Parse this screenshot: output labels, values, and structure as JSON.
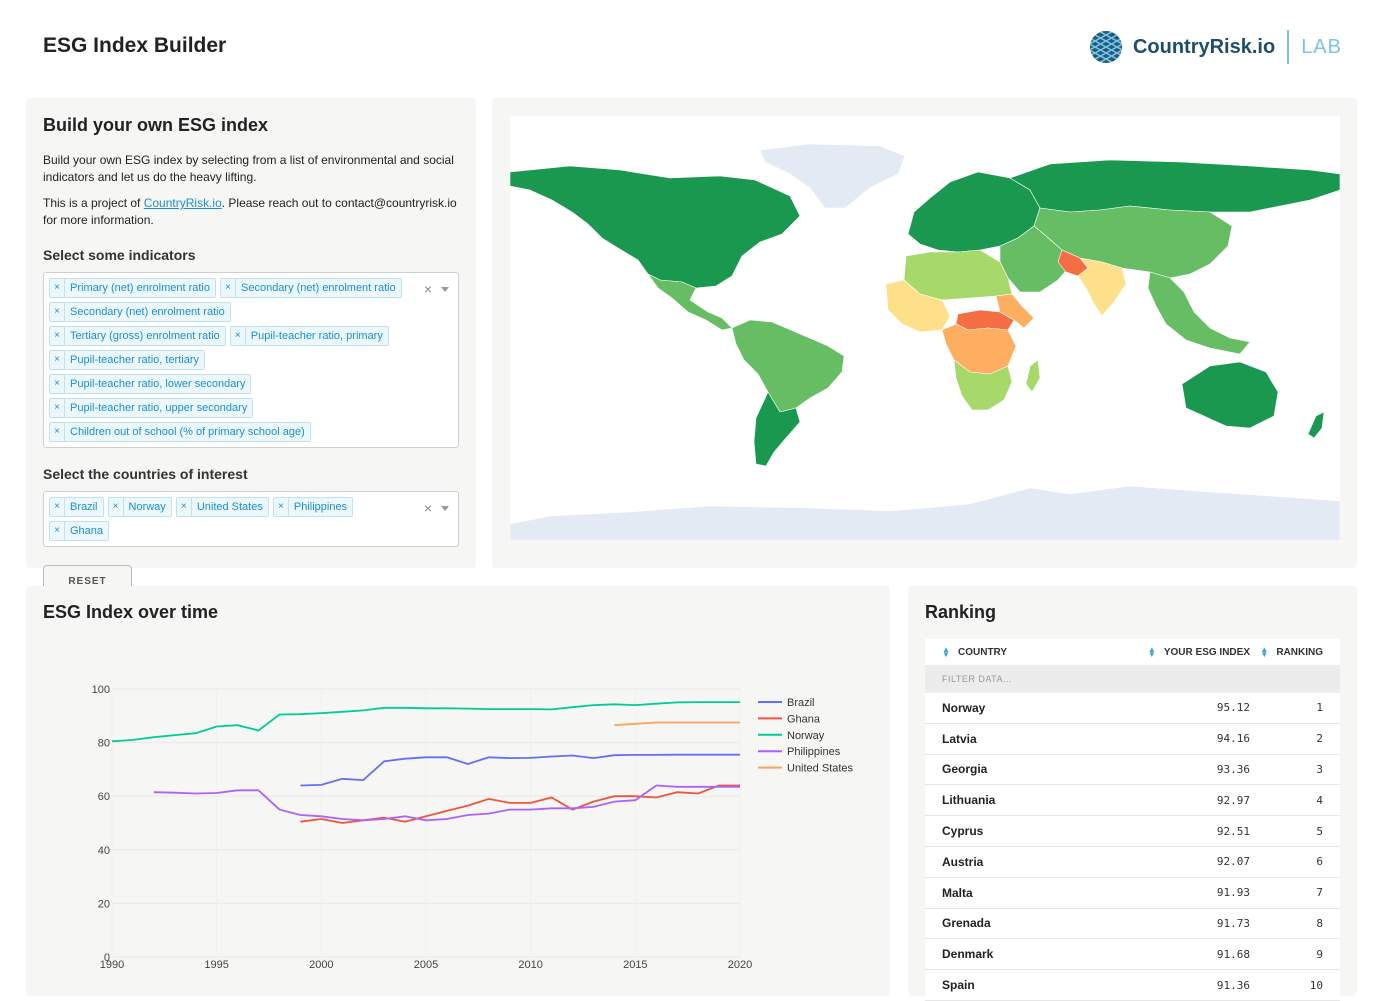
{
  "header": {
    "title": "ESG Index Builder",
    "brand_name": "CountryRisk.io",
    "brand_lab": "LAB"
  },
  "builder": {
    "title": "Build your own ESG index",
    "description": "Build your own ESG index by selecting from a list of environmental and social indicators and let us do the heavy lifting.",
    "project_prefix": "This is a project of ",
    "project_link": "CountryRisk.io",
    "project_suffix": ". Please reach out to contact@countryrisk.io for more information.",
    "indicators_label": "Select some indicators",
    "indicators": [
      "Primary (net) enrolment ratio",
      "Secondary (net) enrolment ratio",
      "Secondary (net) enrolment ratio",
      "Tertiary (gross) enrolment ratio",
      "Pupil-teacher ratio, primary",
      "Pupil-teacher ratio, tertiary",
      "Pupil-teacher ratio, lower secondary",
      "Pupil-teacher ratio, upper secondary",
      "Children out of school (% of primary school age)"
    ],
    "countries_label": "Select the countries of interest",
    "countries": [
      "Brazil",
      "Norway",
      "United States",
      "Philippines",
      "Ghana"
    ],
    "reset_label": "RESET",
    "tag_remove": "×",
    "clear_all": "×"
  },
  "map": {
    "colors": {
      "top": "#1a9850",
      "high": "#66bd63",
      "mid": "#a6d96a",
      "low": "#fee08b",
      "lower": "#fdae61",
      "lowest": "#f46d43",
      "nodata": "#e3eaf3"
    }
  },
  "chart_section": {
    "title": "ESG Index over time"
  },
  "chart_data": {
    "type": "line",
    "title": "",
    "xlabel": "",
    "ylabel": "",
    "xlim": [
      1990,
      2020
    ],
    "ylim": [
      0,
      100
    ],
    "x_ticks": [
      1990,
      1995,
      2000,
      2005,
      2010,
      2015,
      2020
    ],
    "y_ticks": [
      0,
      20,
      40,
      60,
      80,
      100
    ],
    "legend": "right",
    "series": [
      {
        "name": "Brazil",
        "color": "#636efa",
        "x": [
          1999,
          2000,
          2001,
          2002,
          2003,
          2004,
          2005,
          2006,
          2007,
          2008,
          2009,
          2010,
          2011,
          2012,
          2013,
          2014,
          2015,
          2016,
          2017,
          2018,
          2019,
          2020
        ],
        "y": [
          64,
          64.2,
          66.5,
          66,
          73,
          74,
          74.5,
          74.5,
          72,
          74.5,
          74.2,
          74.3,
          74.8,
          75.2,
          74.2,
          75.3,
          75.4,
          75.4,
          75.5,
          75.5,
          75.5,
          75.5
        ]
      },
      {
        "name": "Ghana",
        "color": "#ef553b",
        "x": [
          1999,
          2000,
          2001,
          2002,
          2003,
          2004,
          2005,
          2006,
          2007,
          2008,
          2009,
          2010,
          2011,
          2012,
          2013,
          2014,
          2015,
          2016,
          2017,
          2018,
          2019,
          2020
        ],
        "y": [
          50.5,
          51.5,
          50,
          51,
          52,
          50.5,
          52.5,
          54.5,
          56.5,
          59,
          57.5,
          57.5,
          59.5,
          55,
          58,
          60,
          60,
          59.5,
          61.5,
          61,
          64,
          64
        ]
      },
      {
        "name": "Norway",
        "color": "#00cc96",
        "x": [
          1990,
          1991,
          1992,
          1993,
          1994,
          1995,
          1996,
          1997,
          1998,
          1999,
          2000,
          2001,
          2002,
          2003,
          2004,
          2005,
          2006,
          2007,
          2008,
          2009,
          2010,
          2011,
          2012,
          2013,
          2014,
          2015,
          2016,
          2017,
          2018,
          2019,
          2020
        ],
        "y": [
          80.5,
          81,
          82,
          82.8,
          83.5,
          86,
          86.5,
          84.5,
          90.5,
          90.6,
          91,
          91.5,
          92,
          93,
          93,
          92.8,
          92.8,
          92.7,
          92.5,
          92.5,
          92.5,
          92.4,
          93.2,
          94,
          94.3,
          94,
          94.5,
          95,
          95.1,
          95.1,
          95.1
        ]
      },
      {
        "name": "Philippines",
        "color": "#ab63fa",
        "x": [
          1992,
          1993,
          1994,
          1995,
          1996,
          1997,
          1998,
          1999,
          2000,
          2001,
          2002,
          2003,
          2004,
          2005,
          2006,
          2007,
          2008,
          2009,
          2010,
          2011,
          2012,
          2013,
          2014,
          2015,
          2016,
          2017,
          2018,
          2019,
          2020
        ],
        "y": [
          61.5,
          61.3,
          61,
          61.2,
          62.2,
          62.2,
          55,
          53,
          52.5,
          51.5,
          51,
          51.5,
          52.5,
          51,
          51.5,
          53,
          53.5,
          55,
          55,
          55.5,
          55.5,
          56,
          58,
          58.5,
          64,
          63.5,
          63.5,
          63.5,
          63.5
        ]
      },
      {
        "name": "United States",
        "color": "#ffa15a",
        "x": [
          2014,
          2015,
          2016,
          2017,
          2018,
          2019,
          2020
        ],
        "y": [
          86.5,
          87,
          87.5,
          87.5,
          87.5,
          87.5,
          87.5
        ]
      }
    ]
  },
  "ranking": {
    "title": "Ranking",
    "columns": [
      "COUNTRY",
      "YOUR ESG INDEX",
      "RANKING"
    ],
    "filter_placeholder": "FILTER DATA...",
    "rows": [
      {
        "country": "Norway",
        "index": "95.12",
        "rank": "1"
      },
      {
        "country": "Latvia",
        "index": "94.16",
        "rank": "2"
      },
      {
        "country": "Georgia",
        "index": "93.36",
        "rank": "3"
      },
      {
        "country": "Lithuania",
        "index": "92.97",
        "rank": "4"
      },
      {
        "country": "Cyprus",
        "index": "92.51",
        "rank": "5"
      },
      {
        "country": "Austria",
        "index": "92.07",
        "rank": "6"
      },
      {
        "country": "Malta",
        "index": "91.93",
        "rank": "7"
      },
      {
        "country": "Grenada",
        "index": "91.73",
        "rank": "8"
      },
      {
        "country": "Denmark",
        "index": "91.68",
        "rank": "9"
      },
      {
        "country": "Spain",
        "index": "91.36",
        "rank": "10"
      }
    ]
  }
}
